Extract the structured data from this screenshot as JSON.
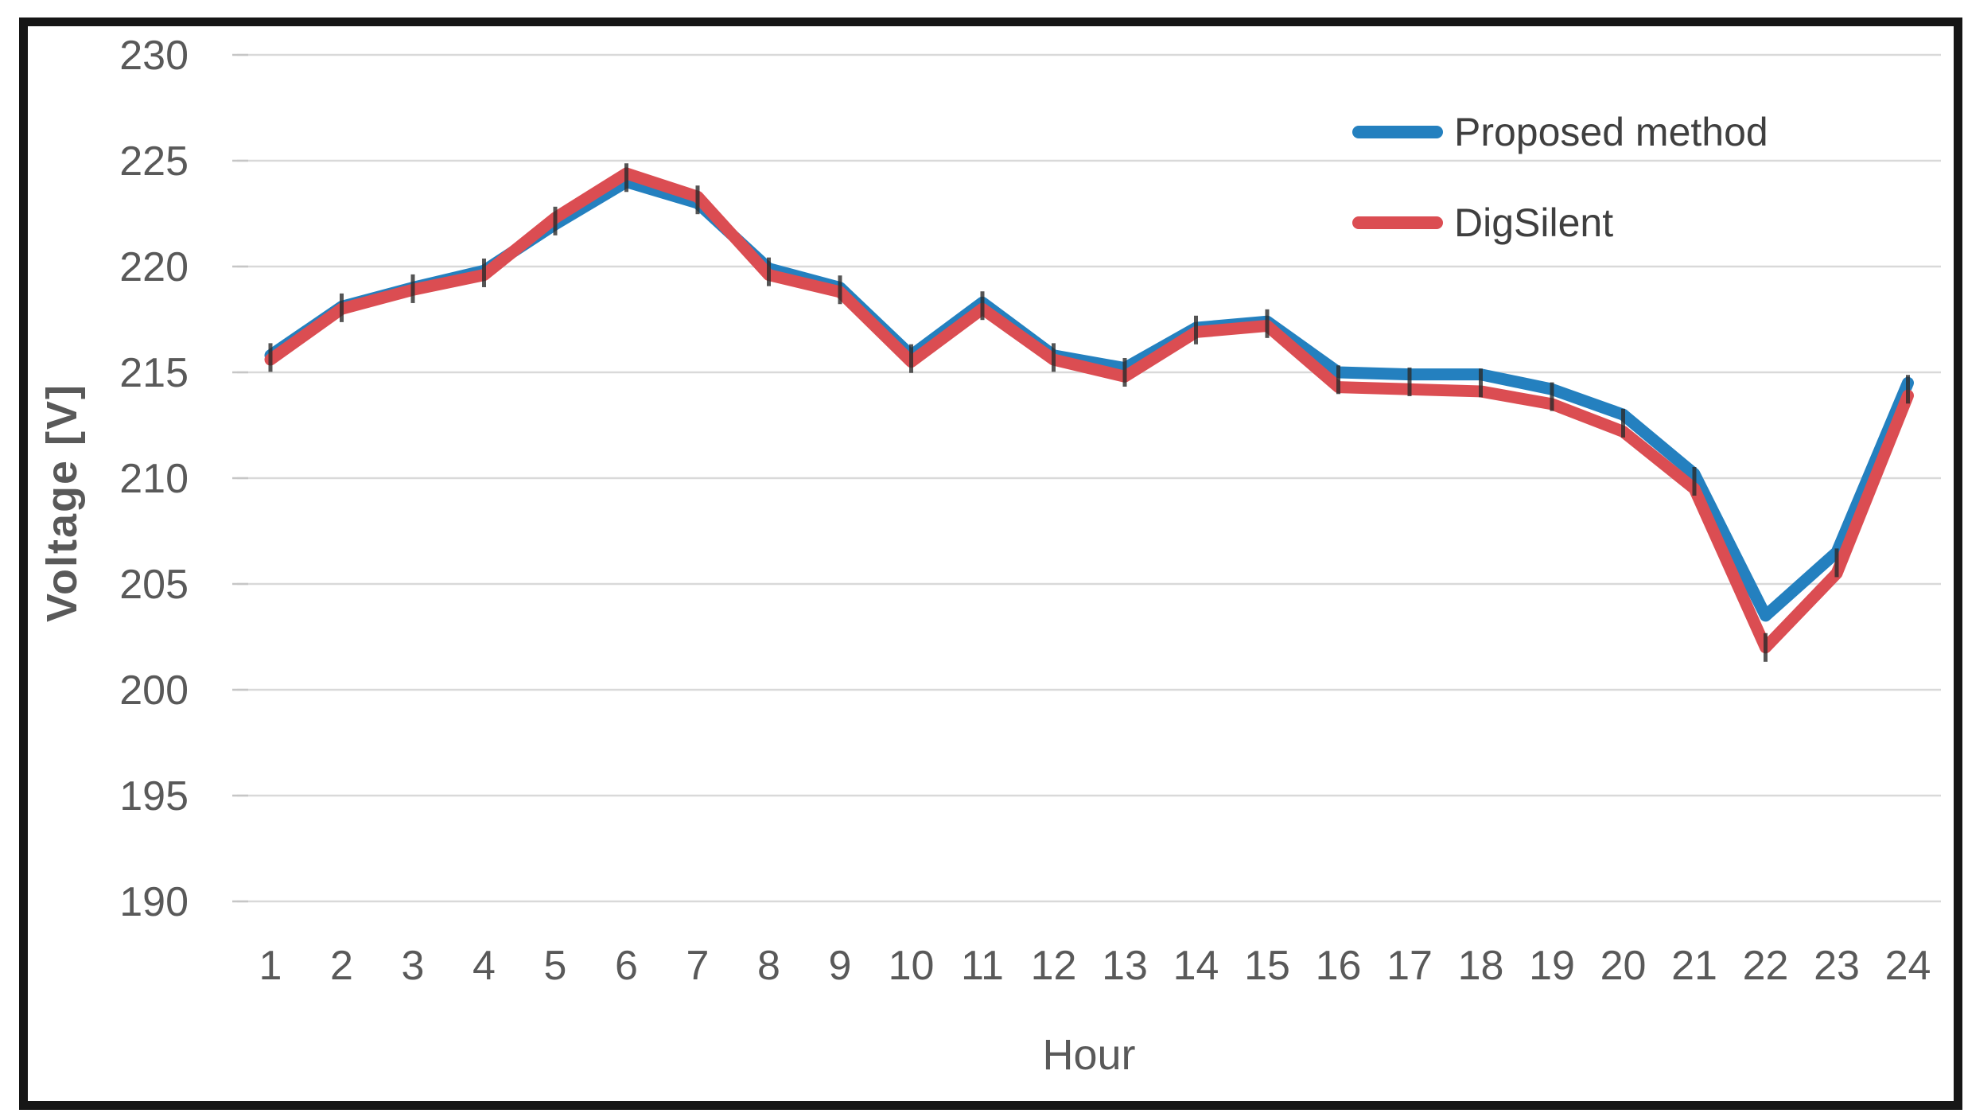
{
  "chart_data": {
    "type": "line",
    "x": [
      1,
      2,
      3,
      4,
      5,
      6,
      7,
      8,
      9,
      10,
      11,
      12,
      13,
      14,
      15,
      16,
      17,
      18,
      19,
      20,
      21,
      22,
      23,
      24
    ],
    "xlabel": "Hour",
    "ylabel": "Voltage [V]",
    "ylim": [
      190,
      230
    ],
    "yticks": [
      230,
      225,
      220,
      215,
      210,
      205,
      200,
      195,
      190
    ],
    "grid": true,
    "legend_position": "upper-right-inside",
    "series": [
      {
        "name": "Proposed method",
        "color": "#2480BF",
        "values": [
          215.8,
          218.1,
          219.0,
          219.8,
          222.0,
          224.0,
          223.0,
          219.9,
          219.0,
          215.8,
          218.3,
          215.8,
          215.2,
          217.1,
          217.4,
          215.0,
          214.9,
          214.9,
          214.2,
          213.0,
          210.2,
          203.5,
          206.5,
          214.5
        ]
      },
      {
        "name": "DigSilent",
        "color": "#DB4D52",
        "values": [
          215.6,
          218.0,
          218.9,
          219.6,
          222.3,
          224.4,
          223.3,
          219.6,
          218.8,
          215.5,
          218.0,
          215.6,
          214.8,
          216.9,
          217.2,
          214.3,
          214.2,
          214.1,
          213.5,
          212.2,
          209.5,
          202.0,
          205.5,
          213.9
        ]
      }
    ]
  },
  "colors": {
    "grid": "#D9D9D9",
    "tick_stub": "#C6C6C6",
    "tick_text": "#595959",
    "axis_title_text": "#595959",
    "legend_text": "#3F3F3F",
    "frame_border": "#161616",
    "marker": "#2B2B2B",
    "background": "#FFFFFF"
  }
}
